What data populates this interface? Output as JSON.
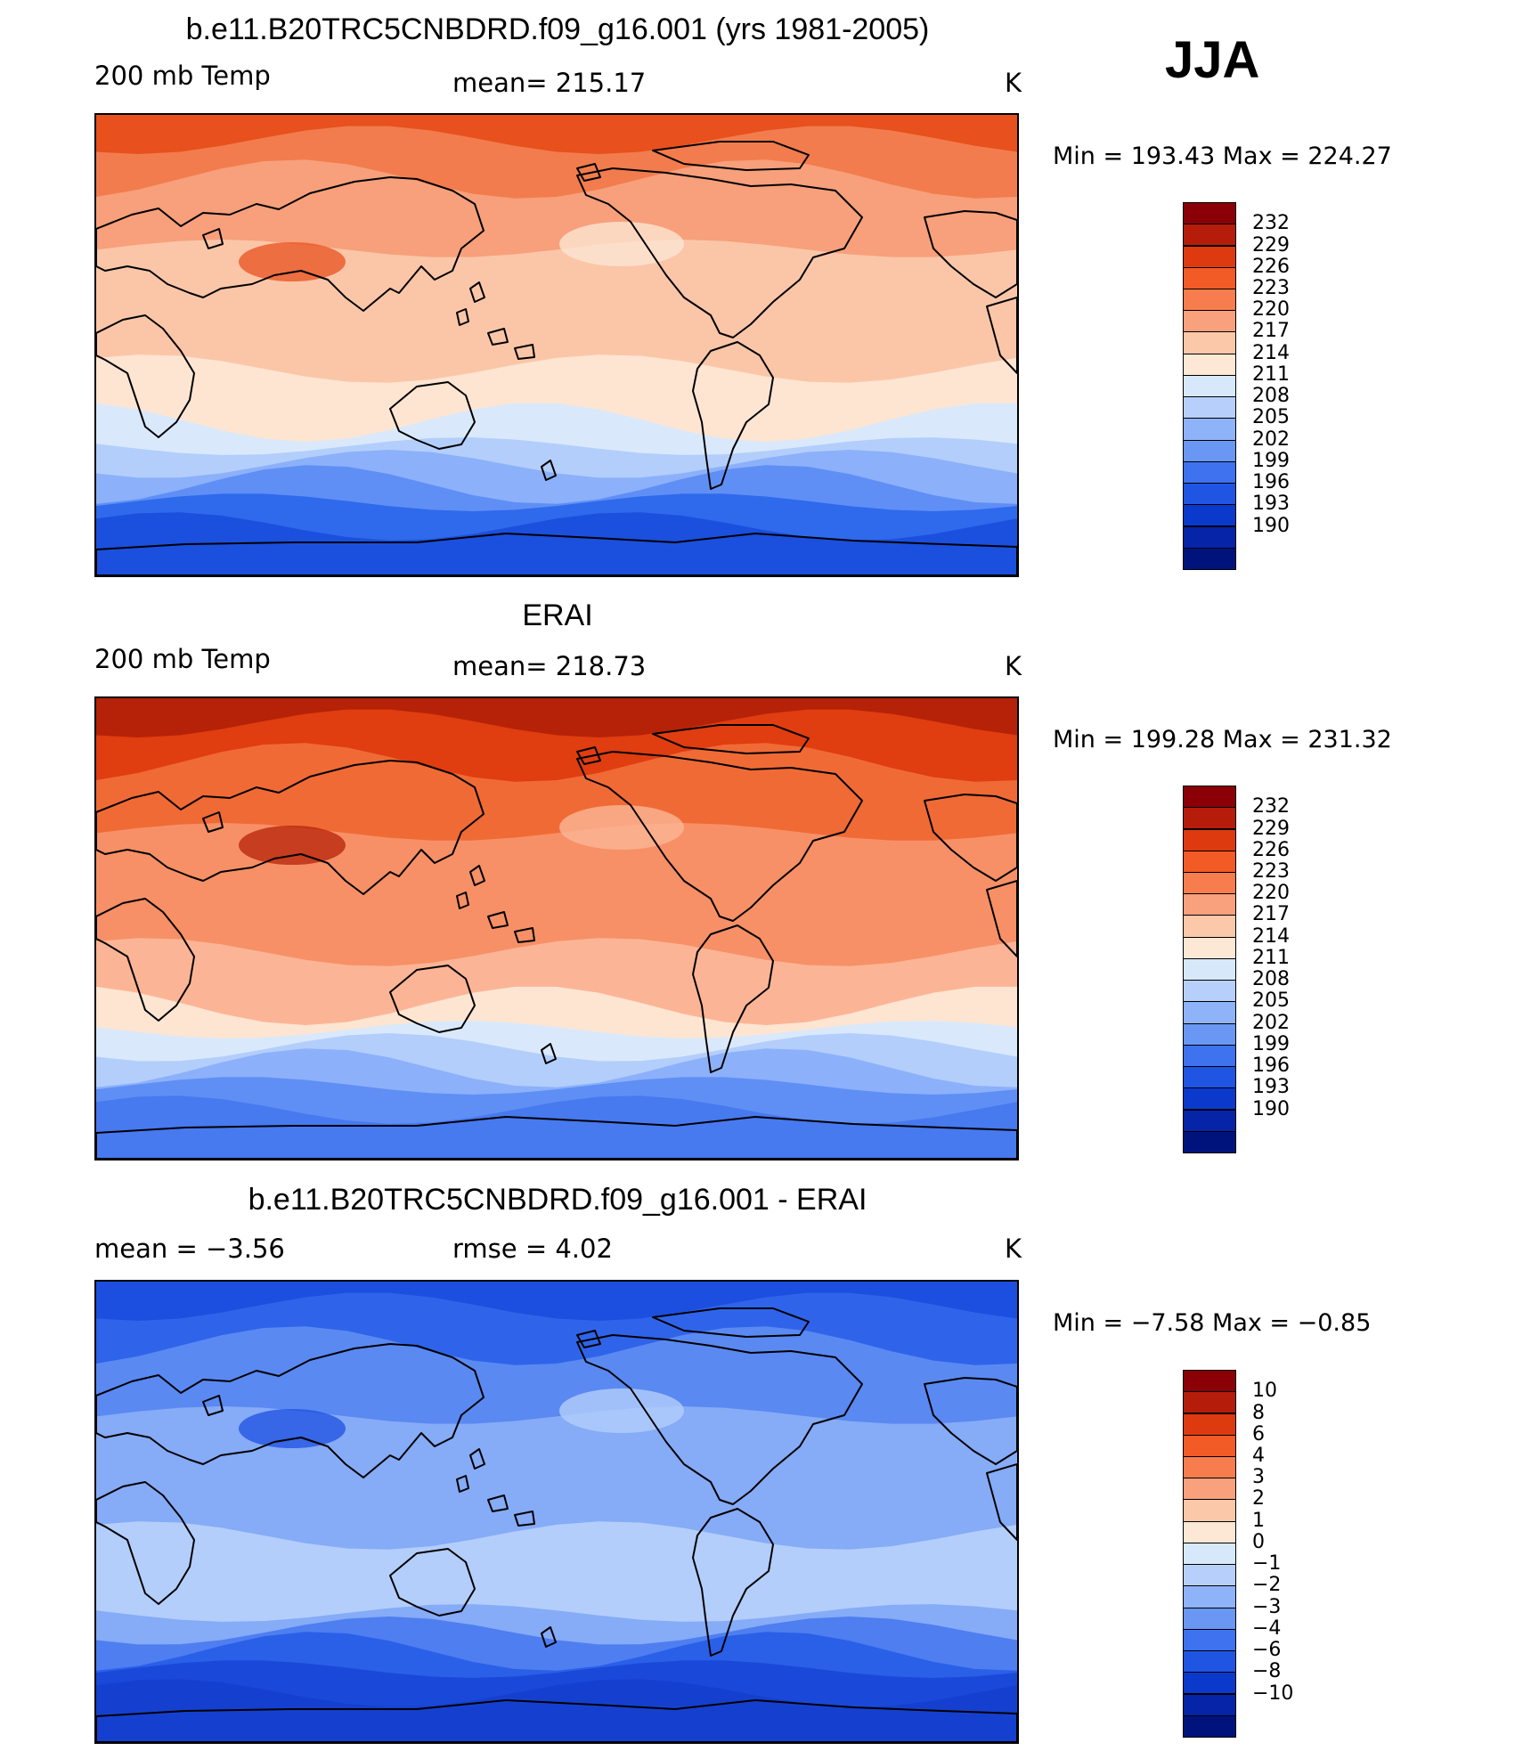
{
  "season": "JJA",
  "panels": [
    {
      "id": "model",
      "title": "b.e11.B20TRC5CNBDRD.f09_g16.001 (yrs 1981-2005)",
      "left_label": "200 mb Temp",
      "center_label": "mean=  215.17",
      "units": "K",
      "minmax": "Min  =  193.43  Max  =  224.27",
      "bands": [
        "#e8501e",
        "#f27c4d",
        "#f7a07b",
        "#fbc6a8",
        "#fde5d2",
        "#d9e9fb",
        "#b3cefb",
        "#8cb0fa",
        "#5f8ff5",
        "#2f69ec",
        "#1b4fdd"
      ]
    },
    {
      "id": "obs",
      "title": "ERAI",
      "left_label": "200 mb Temp",
      "center_label": "mean=  218.73",
      "units": "K",
      "minmax": "Min  =  199.28  Max  =  231.32",
      "bands": [
        "#b52208",
        "#e03d10",
        "#f06a36",
        "#f79066",
        "#fbb596",
        "#fde5d2",
        "#d9e9fb",
        "#b3cefb",
        "#8cb0fa",
        "#5f8ff5",
        "#4779ef"
      ]
    },
    {
      "id": "diff",
      "title": "b.e11.B20TRC5CNBDRD.f09_g16.001 - ERAI",
      "left_label": "mean  =    −3.56",
      "center_label": "rmse  =     4.02",
      "units": "K",
      "minmax": "Min  =    −7.58  Max  =    −0.85",
      "bands": [
        "#1c4fe0",
        "#2f64ea",
        "#5a89f2",
        "#86abf7",
        "#b3cefb",
        "#b3cefb",
        "#86abf7",
        "#4e7ef0",
        "#2a5fe8",
        "#1a48d8",
        "#1540cf"
      ]
    }
  ],
  "colorbar_colors": [
    "#8a0006",
    "#b51d0a",
    "#dd3a0f",
    "#f25a26",
    "#f77d4e",
    "#f9a07d",
    "#fbc8aa",
    "#fde8d6",
    "#d8e8fb",
    "#b7d0fb",
    "#8fb3f8",
    "#6a97f4",
    "#3e72ee",
    "#1f55e2",
    "#0b39cc",
    "#0524a8",
    "#00137d"
  ],
  "colorbar_labels_temp": [
    "232",
    "229",
    "226",
    "223",
    "220",
    "217",
    "214",
    "211",
    "208",
    "205",
    "202",
    "199",
    "196",
    "193",
    "190"
  ],
  "colorbar_labels_diff": [
    "10",
    "8",
    "6",
    "4",
    "3",
    "2",
    "1",
    "0",
    "−1",
    "−2",
    "−3",
    "−4",
    "−6",
    "−8",
    "−10"
  ]
}
